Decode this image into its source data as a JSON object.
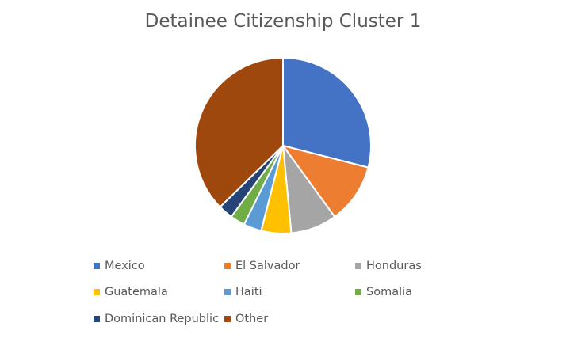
{
  "chart_data": {
    "type": "pie",
    "title": "Detainee Citizenship Cluster 1",
    "slices": [
      {
        "label": "Mexico",
        "value": 29,
        "color": "#4472C4"
      },
      {
        "label": "El Salvador",
        "value": 11,
        "color": "#ED7D31"
      },
      {
        "label": "Honduras",
        "value": 8.5,
        "color": "#A5A5A5"
      },
      {
        "label": "Guatemala",
        "value": 5.5,
        "color": "#FFC000"
      },
      {
        "label": "Haiti",
        "value": 3.3,
        "color": "#5B9BD5"
      },
      {
        "label": "Somalia",
        "value": 2.7,
        "color": "#70AD47"
      },
      {
        "label": "Dominican Republic",
        "value": 2.7,
        "color": "#264478"
      },
      {
        "label": "Other",
        "value": 37.3,
        "color": "#9E480E"
      }
    ],
    "legend_position": "bottom"
  }
}
